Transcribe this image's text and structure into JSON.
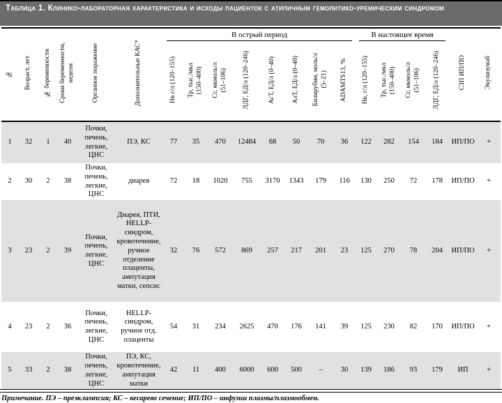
{
  "title": "Таблица 1. Клинико-лабораторная характеристика и исходы пациенток с атипичным гемолитико-уремическим синдромом",
  "table": {
    "group_headers": [
      {
        "label": "В острый период",
        "start": 6,
        "span": 8
      },
      {
        "label": "В настоящее время",
        "start": 14,
        "span": 4
      }
    ],
    "columns": [
      "№",
      "Возраст, лет",
      "№ беременности",
      "Сроки беременности,\nнедели",
      "Органное поражение",
      "Дополнительные КАС*",
      "Нв г/л (120–155)",
      "Тр, тыс./мкл\n(150–400)",
      "Сг, мкмоль/л\n(51–106)",
      "ЛДГ, ЕД/л (120–246)",
      "АсТ, ЕД/л (0–40)",
      "АлТ, ЕД/л (0–40)",
      "Билирубин, моль/л\n(5–21)",
      "ADAMTS13, %",
      "Нв, г/л (120–155)",
      "Тр, тыс./мкл\n(150–400)",
      "Сг, мкмоль/л\n(51–106)",
      "ЛДГ, ЕД/л (120–246)",
      "СЗП ИП/ПО",
      "Экулизумаб"
    ],
    "rows": [
      [
        "1",
        "32",
        "1",
        "40",
        "Почки, печень, легкие, ЦНС",
        "ПЭ, КС",
        "77",
        "35",
        "470",
        "12484",
        "68",
        "50",
        "70",
        "36",
        "122",
        "282",
        "154",
        "184",
        "ИП/ПО",
        "+"
      ],
      [
        "2",
        "30",
        "2",
        "38",
        "Почки, печень, легкие, ЦНС",
        "диарея",
        "72",
        "18",
        "1020",
        "755",
        "3170",
        "1343",
        "179",
        "116",
        "130",
        "250",
        "72",
        "178",
        "ИП/ПО",
        "+"
      ],
      [
        "3",
        "23",
        "2",
        "39",
        "Почки, печень, легкие, ЦНС",
        "Диарея, ПТИ, HELLP-синдром, кровотечение, ручное отделение плаценты, ампутация матки, сепсис",
        "32",
        "76",
        "572",
        "869",
        "257",
        "217",
        "201",
        "23",
        "125",
        "270",
        "78",
        "204",
        "ИП/ПО",
        "+"
      ],
      [
        "4",
        "23",
        "2",
        "36",
        "Почки, печень, легкие, ЦНС",
        "HELLP-синдром, ручное отд. плаценты",
        "54",
        "31",
        "234",
        "2625",
        "470",
        "176",
        "141",
        "39",
        "125",
        "230",
        "82",
        "170",
        "ИП/ПО",
        "+"
      ],
      [
        "5",
        "33",
        "2",
        "38",
        "Почки, печень, легкие, ЦНС",
        "ПЭ, КС, кровотечение, ампутация матки",
        "42",
        "11",
        "400",
        "6000",
        "600",
        "500",
        "–",
        "30",
        "139",
        "186",
        "93",
        "179",
        "ИП",
        "+"
      ]
    ],
    "stripe_color": "#e1e1e1",
    "title_bar_color": "#6b6b6b"
  },
  "footnote": "Примечание. ПЭ – преэклампсия; КС – кесарево сечение; ИП/ПО – инфузии плазмы/плазмообмен."
}
